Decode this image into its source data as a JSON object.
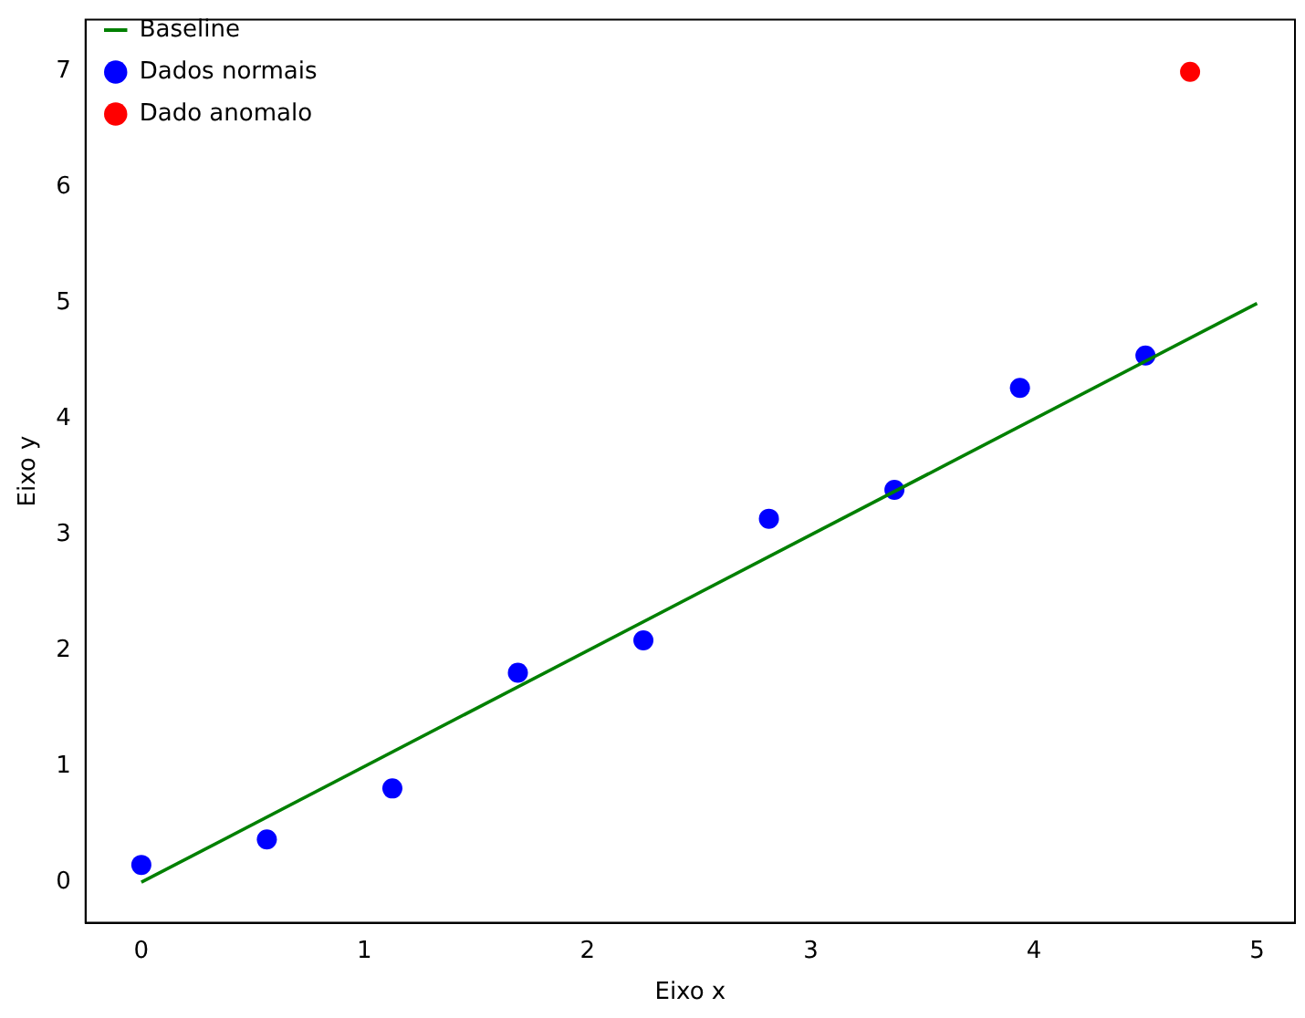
{
  "chart_data": {
    "type": "scatter",
    "xlabel": "Eixo x",
    "ylabel": "Eixo y",
    "xlim": [
      -0.25,
      5.17
    ],
    "ylim": [
      -0.35,
      7.45
    ],
    "xticks": [
      0,
      1,
      2,
      3,
      4,
      5
    ],
    "yticks": [
      0,
      1,
      2,
      3,
      4,
      5,
      6,
      7
    ],
    "grid": false,
    "legend": "top left",
    "series": [
      {
        "name": "Baseline",
        "type": "line",
        "color": "#008000",
        "x": [
          0,
          5
        ],
        "values": [
          0,
          5
        ],
        "marker": "none",
        "line_style": "solid"
      },
      {
        "name": "Dados normais",
        "color": "#0000ff",
        "x": [
          0,
          0.5625,
          1.125,
          1.6875,
          2.25,
          2.8125,
          3.375,
          3.9375,
          4.5
        ],
        "values": [
          0.15,
          0.37,
          0.81,
          1.81,
          2.09,
          3.14,
          3.39,
          4.27,
          4.55
        ],
        "marker": "circle"
      },
      {
        "name": "Dado anomalo",
        "color": "#ff0000",
        "x": [
          4.7
        ],
        "values": [
          7
        ],
        "marker": "circle"
      }
    ]
  }
}
